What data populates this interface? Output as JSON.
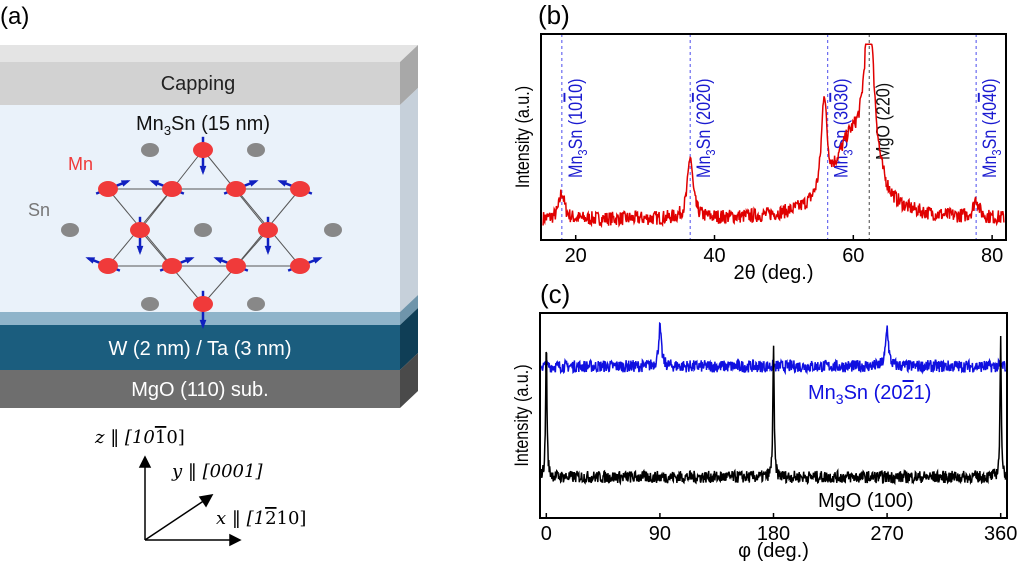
{
  "panel_a": {
    "label": "(a)",
    "layers": {
      "capping": "Capping",
      "film": "Mn",
      "film_sub": "3",
      "film_rest": "Sn (15 nm)",
      "buffer": "W (2 nm) / Ta (3 nm)",
      "substrate": "MgO (110) sub."
    },
    "atom_labels": {
      "mn": "Mn",
      "sn": "Sn"
    },
    "axes": {
      "z": "z ‖ [10",
      "z_bar": "1",
      "z_end": "0]",
      "y": "y ‖ [0001]",
      "x": "x ‖ [1",
      "x_bar": "2",
      "x_end": "10]"
    },
    "colors": {
      "capping": "#d2d2d2",
      "film": "#eaf2fa",
      "buffer": "#1b5d7e",
      "substrate": "#6e6e6e",
      "mn": "#f03a3a",
      "sn": "#888888",
      "spin": "#1020c0"
    }
  },
  "chart_data": [
    {
      "type": "line",
      "panel_label": "(b)",
      "xlabel": "2θ (deg.)",
      "ylabel": "Intensity (a.u.)",
      "xlim": [
        15,
        82
      ],
      "xticks": [
        20,
        40,
        60,
        80
      ],
      "color": "#e00000",
      "baseline": 0.1,
      "peaks": [
        {
          "x": 18.0,
          "y": 0.23,
          "label": "Mn3Sn (10-10)"
        },
        {
          "x": 36.5,
          "y": 0.4,
          "label": "Mn3Sn (20-20)"
        },
        {
          "x": 55.8,
          "y": 0.57,
          "label": "Mn3Sn (30-30)"
        },
        {
          "x": 59.6,
          "y": 0.45,
          "label": ""
        },
        {
          "x": 62.3,
          "y": 0.92,
          "label": "MgO (220)"
        },
        {
          "x": 77.7,
          "y": 0.19,
          "label": "Mn3Sn (40-40)"
        }
      ],
      "reference_lines": [
        {
          "x": 18.0,
          "main": "Mn",
          "sub": "3",
          "rest": "Sn (10",
          "bar": "1",
          "end": "0)",
          "color": "#1a1ad0"
        },
        {
          "x": 36.5,
          "main": "Mn",
          "sub": "3",
          "rest": "Sn (20",
          "bar": "2",
          "end": "0)",
          "color": "#1a1ad0"
        },
        {
          "x": 56.3,
          "main": "Mn",
          "sub": "3",
          "rest": "Sn (30",
          "bar": "3",
          "end": "0)",
          "color": "#1a1ad0"
        },
        {
          "x": 62.3,
          "main": "MgO (220)",
          "sub": "",
          "rest": "",
          "bar": "",
          "end": "",
          "color": "#111111"
        },
        {
          "x": 77.7,
          "main": "Mn",
          "sub": "3",
          "rest": "Sn (40",
          "bar": "4",
          "end": "0)",
          "color": "#1a1ad0"
        }
      ]
    },
    {
      "type": "line",
      "panel_label": "(c)",
      "xlabel": "φ (deg.)",
      "ylabel": "Intensity (a.u.)",
      "xlim": [
        -5,
        365
      ],
      "xticks": [
        0,
        90,
        180,
        270,
        360
      ],
      "series": [
        {
          "name_main": "Mn",
          "name_sub": "3",
          "name_rest": "Sn (20",
          "name_bar": "2",
          "name_end": "1)",
          "color": "#1010e0",
          "baseline": 0.74,
          "peaks": [
            {
              "x": 90,
              "y": 0.93
            },
            {
              "x": 270,
              "y": 0.93
            }
          ]
        },
        {
          "name_main": "MgO (100)",
          "color": "#000000",
          "baseline": 0.2,
          "peaks": [
            {
              "x": 0,
              "y": 0.86
            },
            {
              "x": 180,
              "y": 0.83
            },
            {
              "x": 360,
              "y": 0.86
            }
          ]
        }
      ]
    }
  ]
}
